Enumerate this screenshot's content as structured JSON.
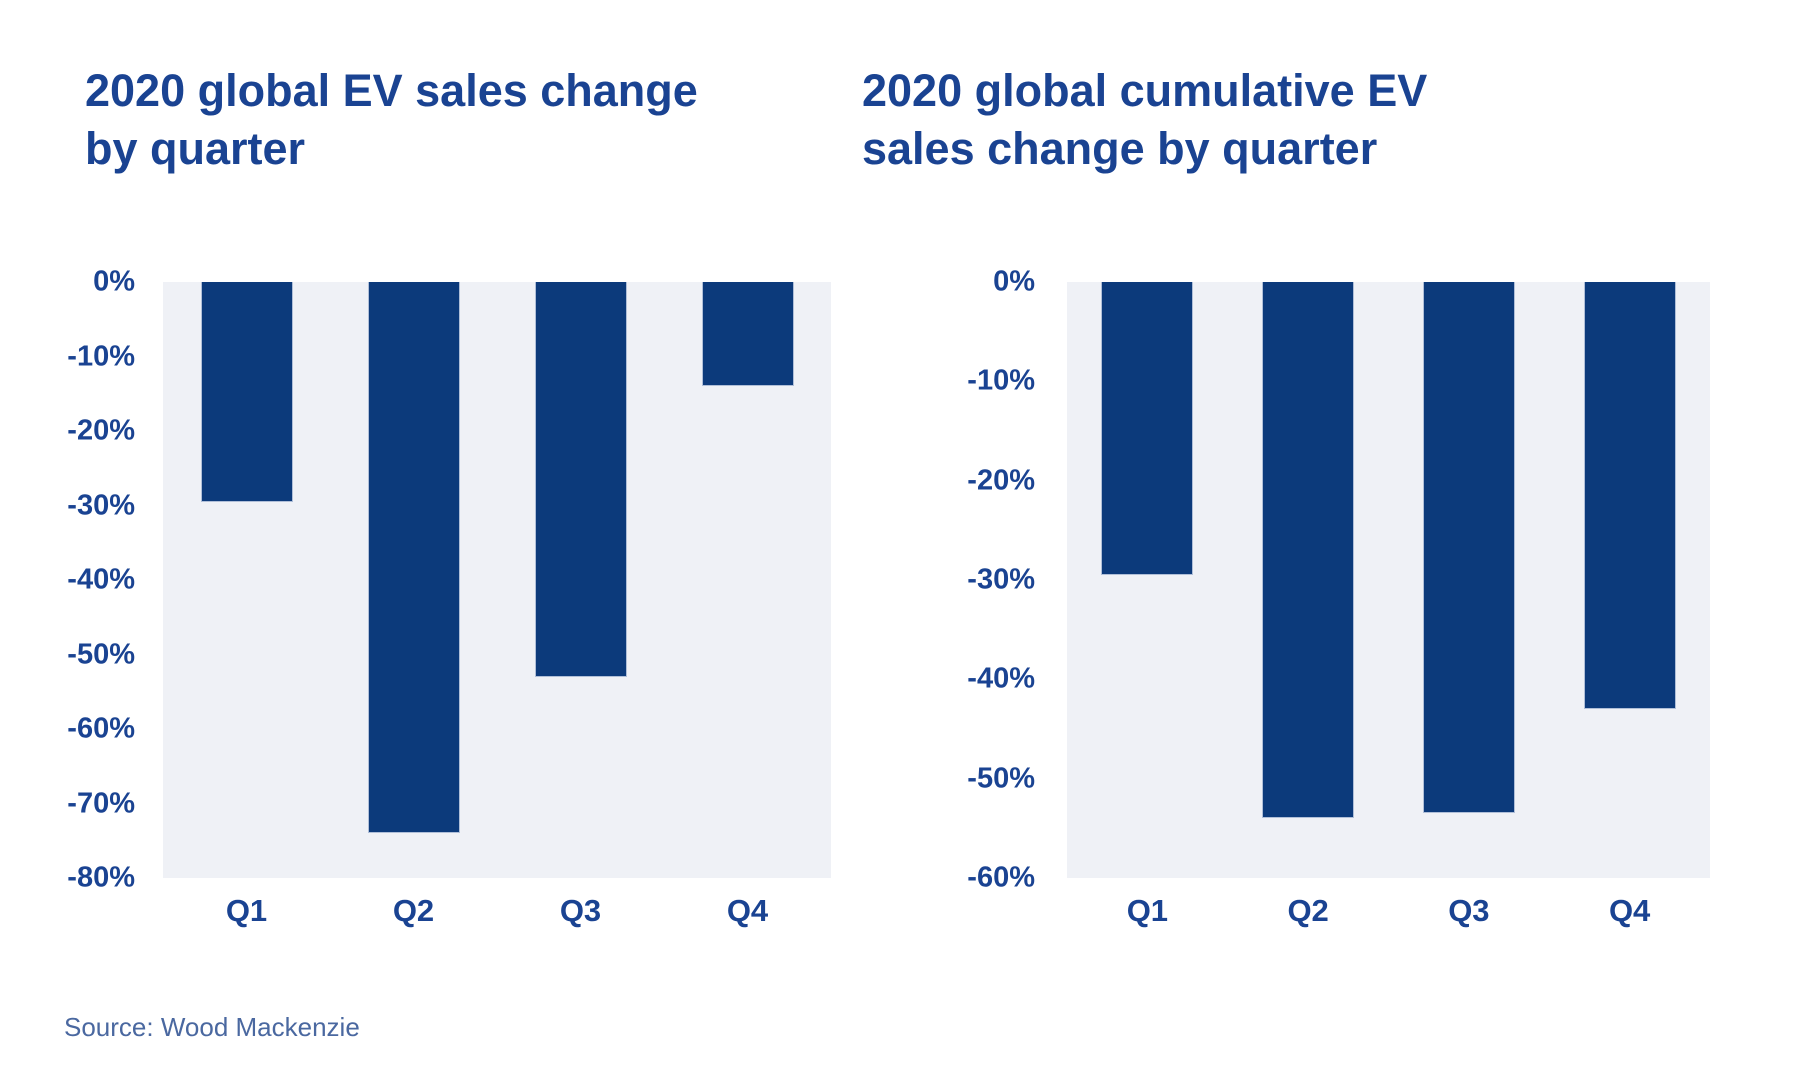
{
  "source": "Source: Wood Mackenzie",
  "colors": {
    "bar": "#0c3a7b",
    "bar_border": "#b0bfd8",
    "text_blue": "#1a4392",
    "plot_background": "#eff1f6",
    "source_text": "#4a68a0",
    "page_background": "#ffffff"
  },
  "chart_data": [
    {
      "type": "bar",
      "title": "2020 global EV sales change by quarter",
      "categories": [
        "Q1",
        "Q2",
        "Q3",
        "Q4"
      ],
      "values": [
        -29.5,
        -74,
        -53,
        -14
      ],
      "unit": "%",
      "xlabel": "",
      "ylabel": "",
      "ylim": [
        0,
        -80
      ],
      "ytick_step": 10,
      "ytick_labels": [
        "0%",
        "-10%",
        "-20%",
        "-30%",
        "-40%",
        "-50%",
        "-60%",
        "-70%",
        "-80%"
      ],
      "grid": false,
      "legend": false
    },
    {
      "type": "bar",
      "title": "2020 global cumulative EV sales change by quarter",
      "categories": [
        "Q1",
        "Q2",
        "Q3",
        "Q4"
      ],
      "values": [
        -29.5,
        -54,
        -53.5,
        -43
      ],
      "unit": "%",
      "xlabel": "",
      "ylabel": "",
      "ylim": [
        0,
        -60
      ],
      "ytick_step": 10,
      "ytick_labels": [
        "0%",
        "-10%",
        "-20%",
        "-30%",
        "-40%",
        "-50%",
        "-60%"
      ],
      "grid": false,
      "legend": false
    }
  ]
}
